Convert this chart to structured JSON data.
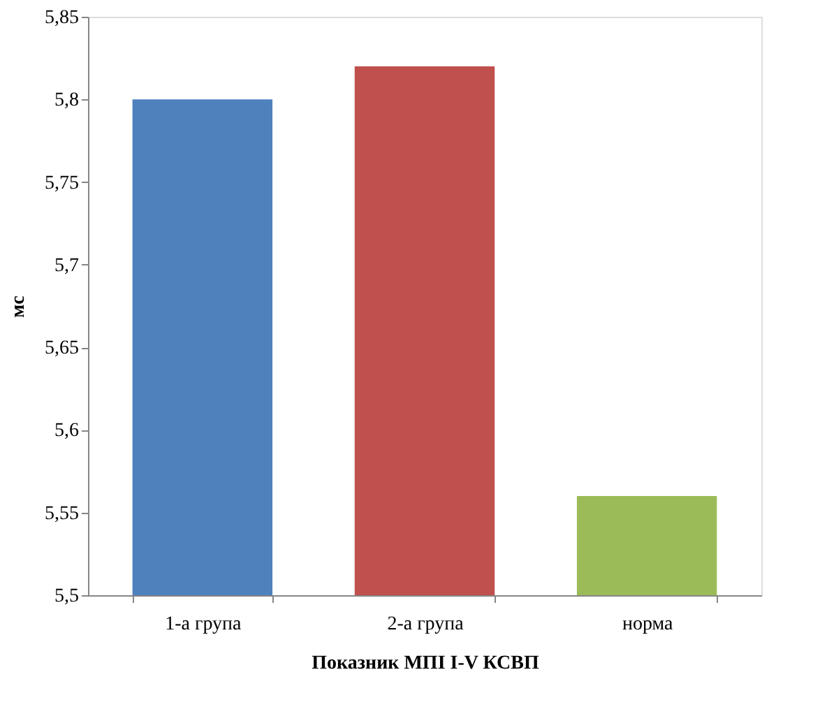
{
  "chart_data": {
    "type": "bar",
    "xlabel": "Показник МПІ I-V КСВП",
    "ylabel": "мс",
    "categories": [
      "1-а група",
      "2-а група",
      "норма"
    ],
    "values": [
      5.8,
      5.82,
      5.56
    ],
    "colors": [
      "#4f81bd",
      "#c0504d",
      "#9bbb59"
    ],
    "ylim": [
      5.5,
      5.85
    ],
    "yticks": [
      {
        "value": 5.5,
        "label": "5,5"
      },
      {
        "value": 5.55,
        "label": "5,55"
      },
      {
        "value": 5.6,
        "label": "5,6"
      },
      {
        "value": 5.65,
        "label": "5,65"
      },
      {
        "value": 5.7,
        "label": "5,7"
      },
      {
        "value": 5.75,
        "label": "5,75"
      },
      {
        "value": 5.8,
        "label": "5,8"
      },
      {
        "value": 5.85,
        "label": "5,85"
      }
    ],
    "grid": false,
    "legend": false
  }
}
